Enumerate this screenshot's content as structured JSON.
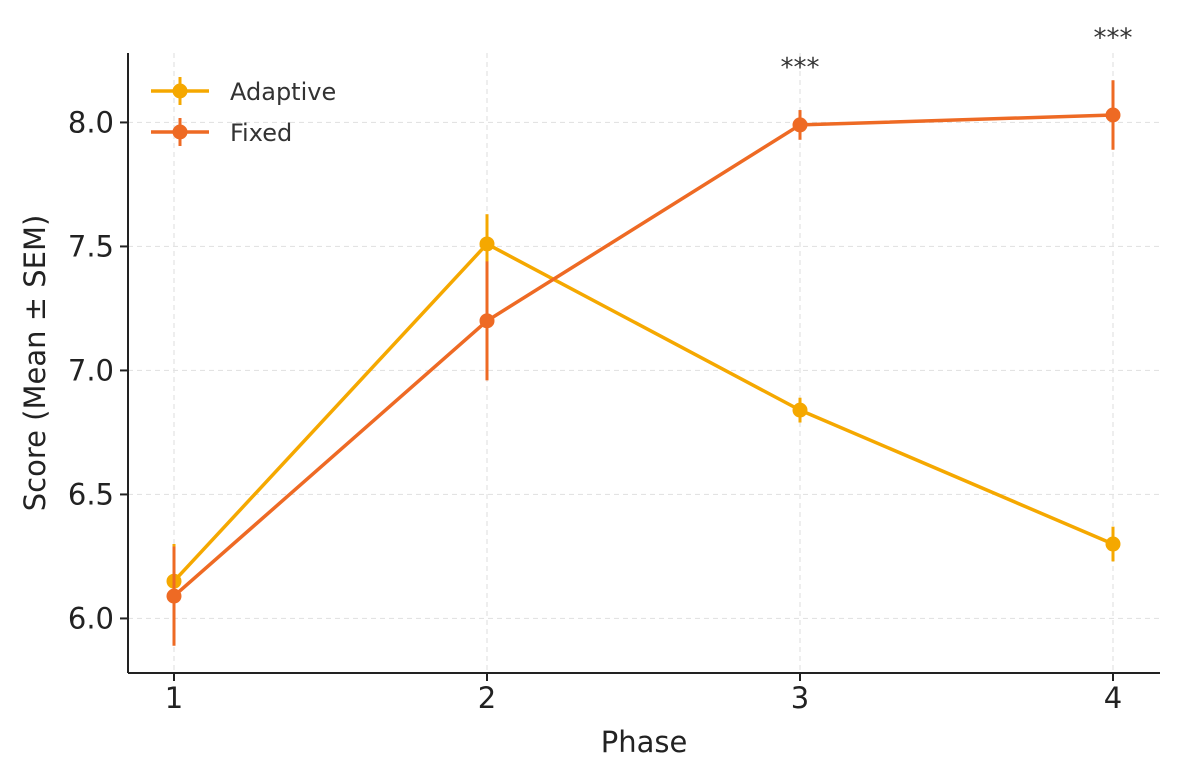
{
  "chart_data": {
    "type": "line",
    "xlabel": "Phase",
    "ylabel": "Score (Mean ± SEM)",
    "x": [
      1,
      2,
      3,
      4
    ],
    "x_tick_labels": [
      "1",
      "2",
      "3",
      "4"
    ],
    "ylim": [
      5.78,
      8.28
    ],
    "y_ticks": [
      6.0,
      6.5,
      7.0,
      7.5,
      8.0
    ],
    "y_tick_labels": [
      "6.0",
      "6.5",
      "7.0",
      "7.5",
      "8.0"
    ],
    "grid": true,
    "legend_position": "top-left",
    "series": [
      {
        "name": "Adaptive",
        "color": "#F5A800",
        "values": [
          6.15,
          7.51,
          6.84,
          6.3
        ],
        "errors": [
          0.15,
          0.12,
          0.05,
          0.07
        ]
      },
      {
        "name": "Fixed",
        "color": "#EE6A24",
        "values": [
          6.09,
          7.2,
          7.99,
          8.03
        ],
        "errors": [
          0.2,
          0.24,
          0.06,
          0.14
        ]
      }
    ],
    "annotations": [
      {
        "x": 3,
        "text": "***"
      },
      {
        "x": 4,
        "text": "***"
      }
    ]
  }
}
